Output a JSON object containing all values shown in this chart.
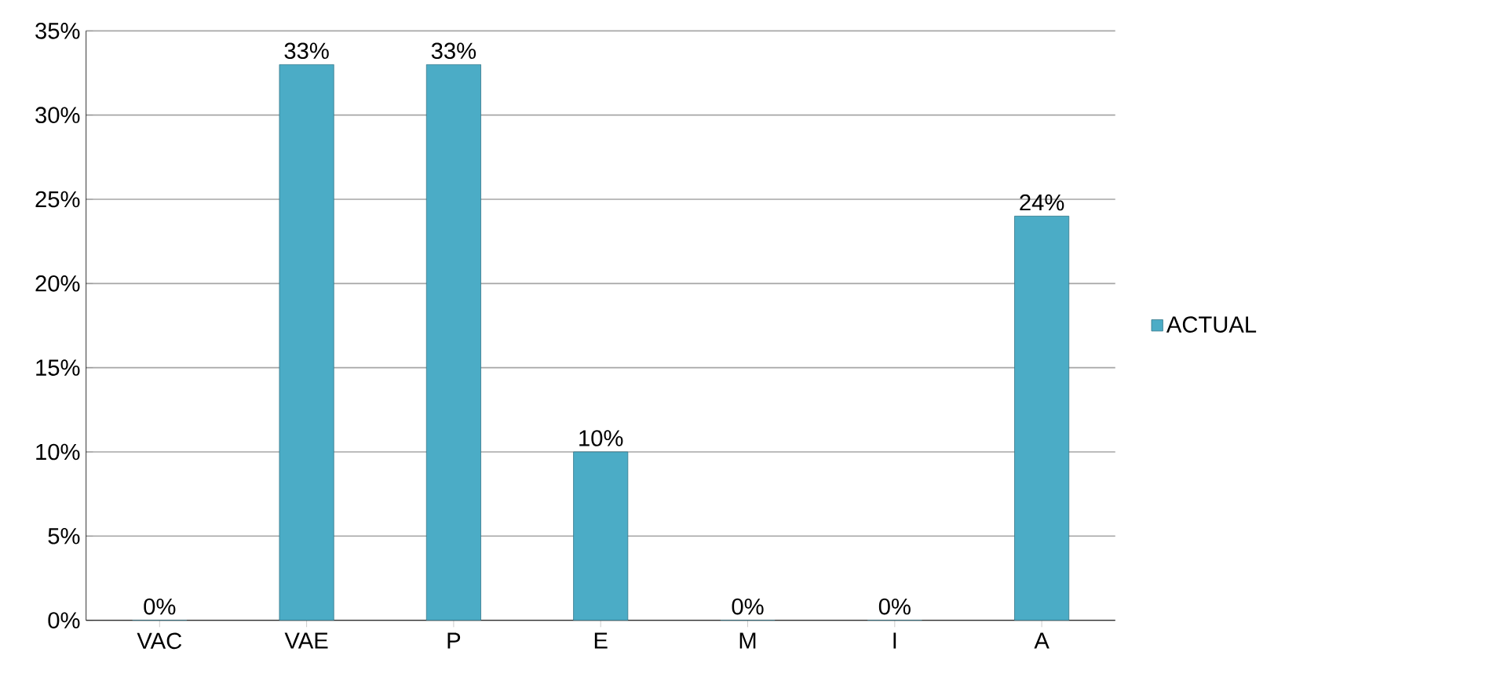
{
  "chart_data": {
    "type": "bar",
    "categories": [
      "VAC",
      "VAE",
      "P",
      "E",
      "M",
      "I",
      "A"
    ],
    "series": [
      {
        "name": "ACTUAL",
        "color": "#4bacc6",
        "values": [
          0,
          33,
          33,
          10,
          0,
          0,
          24
        ],
        "value_labels": [
          "0%",
          "33%",
          "33%",
          "10%",
          "0%",
          "0%",
          "24%"
        ]
      }
    ],
    "ylim": [
      0,
      35
    ],
    "yticks": [
      {
        "value": 0,
        "label": "0%"
      },
      {
        "value": 5,
        "label": "5%"
      },
      {
        "value": 10,
        "label": "10%"
      },
      {
        "value": 15,
        "label": "15%"
      },
      {
        "value": 20,
        "label": "20%"
      },
      {
        "value": 25,
        "label": "25%"
      },
      {
        "value": 30,
        "label": "30%"
      },
      {
        "value": 35,
        "label": "35%"
      }
    ],
    "grid": "y",
    "legend": "right"
  }
}
